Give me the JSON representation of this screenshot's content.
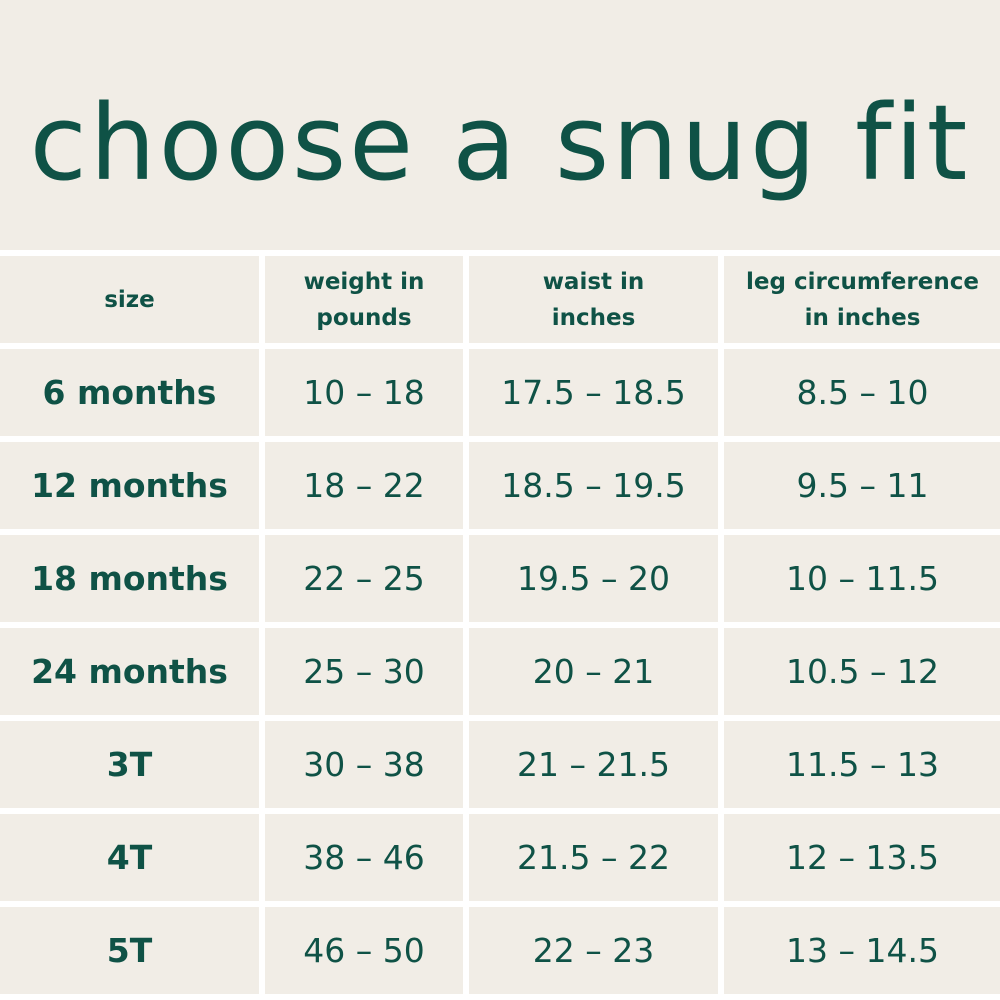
{
  "title": "choose a snug fit",
  "table": {
    "headers": [
      "size",
      "weight in pounds",
      "waist in inches",
      "leg circumference in inches"
    ],
    "rows": [
      [
        "6 months",
        "10 – 18",
        "17.5 – 18.5",
        "8.5 – 10"
      ],
      [
        "12 months",
        "18 – 22",
        "18.5 – 19.5",
        "9.5 – 11"
      ],
      [
        "18 months",
        "22 – 25",
        "19.5 – 20",
        "10 – 11.5"
      ],
      [
        "24 months",
        "25 – 30",
        "20 – 21",
        "10.5 – 12"
      ],
      [
        "3T",
        "30 – 38",
        "21 – 21.5",
        "11.5 – 13"
      ],
      [
        "4T",
        "38 – 46",
        "21.5 – 22",
        "12 – 13.5"
      ],
      [
        "5T",
        "46 – 50",
        "22 – 23",
        "13 – 14.5"
      ]
    ]
  },
  "colors": {
    "text": "#0f5246",
    "background": "#f1ede6",
    "grid": "#ffffff"
  }
}
